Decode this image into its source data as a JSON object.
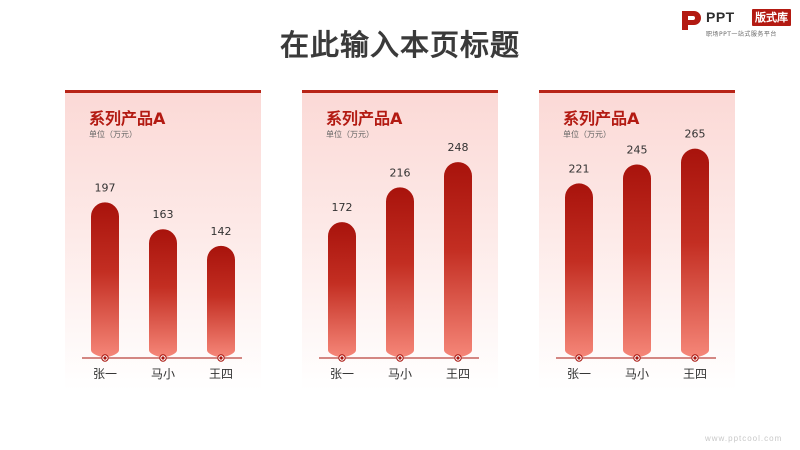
{
  "header": {
    "title": "在此输入本页标题"
  },
  "logo": {
    "mark": "ppt-logo-icon",
    "brand": "PPT",
    "badge": "版式库",
    "slogan": "职场PPT一站式服务平台"
  },
  "footer": {
    "watermark": "www.pptcool.com"
  },
  "colors": {
    "accent": "#b31a12",
    "bar_top": "#a8130c",
    "bar_bottom": "#f58678",
    "baseline": "#a8130c"
  },
  "chart_data": [
    {
      "type": "bar",
      "title": "系列产品A",
      "subtitle": "单位（万元）",
      "categories": [
        "张一",
        "马小",
        "王四"
      ],
      "values": [
        197,
        163,
        142
      ],
      "ylim": [
        0,
        300
      ],
      "grid": false
    },
    {
      "type": "bar",
      "title": "系列产品A",
      "subtitle": "单位（万元）",
      "categories": [
        "张一",
        "马小",
        "王四"
      ],
      "values": [
        172,
        216,
        248
      ],
      "ylim": [
        0,
        300
      ],
      "grid": false
    },
    {
      "type": "bar",
      "title": "系列产品A",
      "subtitle": "单位（万元）",
      "categories": [
        "张一",
        "马小",
        "王四"
      ],
      "values": [
        221,
        245,
        265
      ],
      "ylim": [
        0,
        300
      ],
      "grid": false
    }
  ]
}
